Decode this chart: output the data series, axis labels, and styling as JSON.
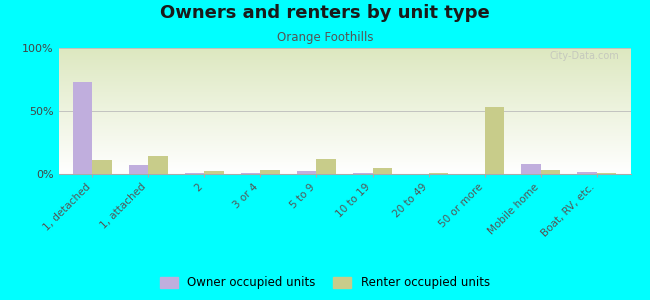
{
  "title": "Owners and renters by unit type",
  "subtitle": "Orange Foothills",
  "categories": [
    "1, detached",
    "1, attached",
    "2",
    "3 or 4",
    "5 to 9",
    "10 to 19",
    "20 to 49",
    "50 or more",
    "Mobile home",
    "Boat, RV, etc."
  ],
  "owner_values": [
    73,
    7,
    1,
    0.5,
    2,
    0.5,
    0,
    0,
    8,
    1.5
  ],
  "renter_values": [
    11,
    14,
    2,
    3.5,
    12,
    5,
    0.5,
    53,
    3,
    1
  ],
  "owner_color": "#c0aedd",
  "renter_color": "#c8cc8a",
  "background_color": "#00ffff",
  "ylabel_ticks": [
    "0%",
    "50%",
    "100%"
  ],
  "ytick_vals": [
    0,
    50,
    100
  ],
  "ylim": [
    0,
    100
  ],
  "bar_width": 0.35,
  "legend_owner": "Owner occupied units",
  "legend_renter": "Renter occupied units",
  "watermark": "City-Data.com"
}
